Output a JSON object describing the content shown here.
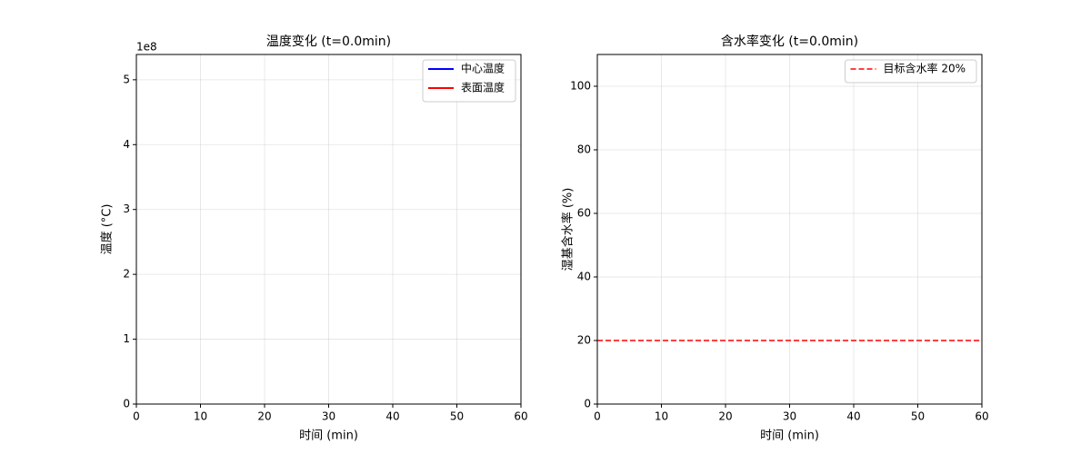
{
  "chart_data": [
    {
      "type": "line",
      "title": "温度变化 (t=0.0min)",
      "x_label": "时间 (min)",
      "y_label": "温度 (°C)",
      "y_offset_text": "1e8",
      "x": [],
      "series": [
        {
          "name": "中心温度",
          "color": "#0000ff",
          "values": []
        },
        {
          "name": "表面温度",
          "color": "#ff0000",
          "values": []
        }
      ],
      "xlim": [
        0,
        60
      ],
      "xticks": [
        0,
        10,
        20,
        30,
        40,
        50,
        60
      ],
      "ylim": [
        0,
        539000000
      ],
      "yticks": [
        0,
        {
          "value": 100000000,
          "label": "1"
        },
        {
          "value": 200000000,
          "label": "2"
        },
        {
          "value": 300000000,
          "label": "3"
        },
        {
          "value": 400000000,
          "label": "4"
        },
        {
          "value": 500000000,
          "label": "5"
        }
      ],
      "grid": true,
      "legend": "upper-right"
    },
    {
      "type": "line",
      "title": "含水率变化 (t=0.0min)",
      "x_label": "时间 (min)",
      "y_label": "湿基含水率 (%)",
      "x": [],
      "series": [],
      "reference_lines": [
        {
          "name": "目标含水率 20%",
          "color": "#ff0000",
          "value": 20,
          "linestyle": "dashed"
        }
      ],
      "xlim": [
        0,
        60
      ],
      "xticks": [
        0,
        10,
        20,
        30,
        40,
        50,
        60
      ],
      "ylim": [
        0,
        110
      ],
      "yticks": [
        0,
        20,
        40,
        60,
        80,
        100
      ],
      "grid": true,
      "legend": "upper-right"
    }
  ]
}
